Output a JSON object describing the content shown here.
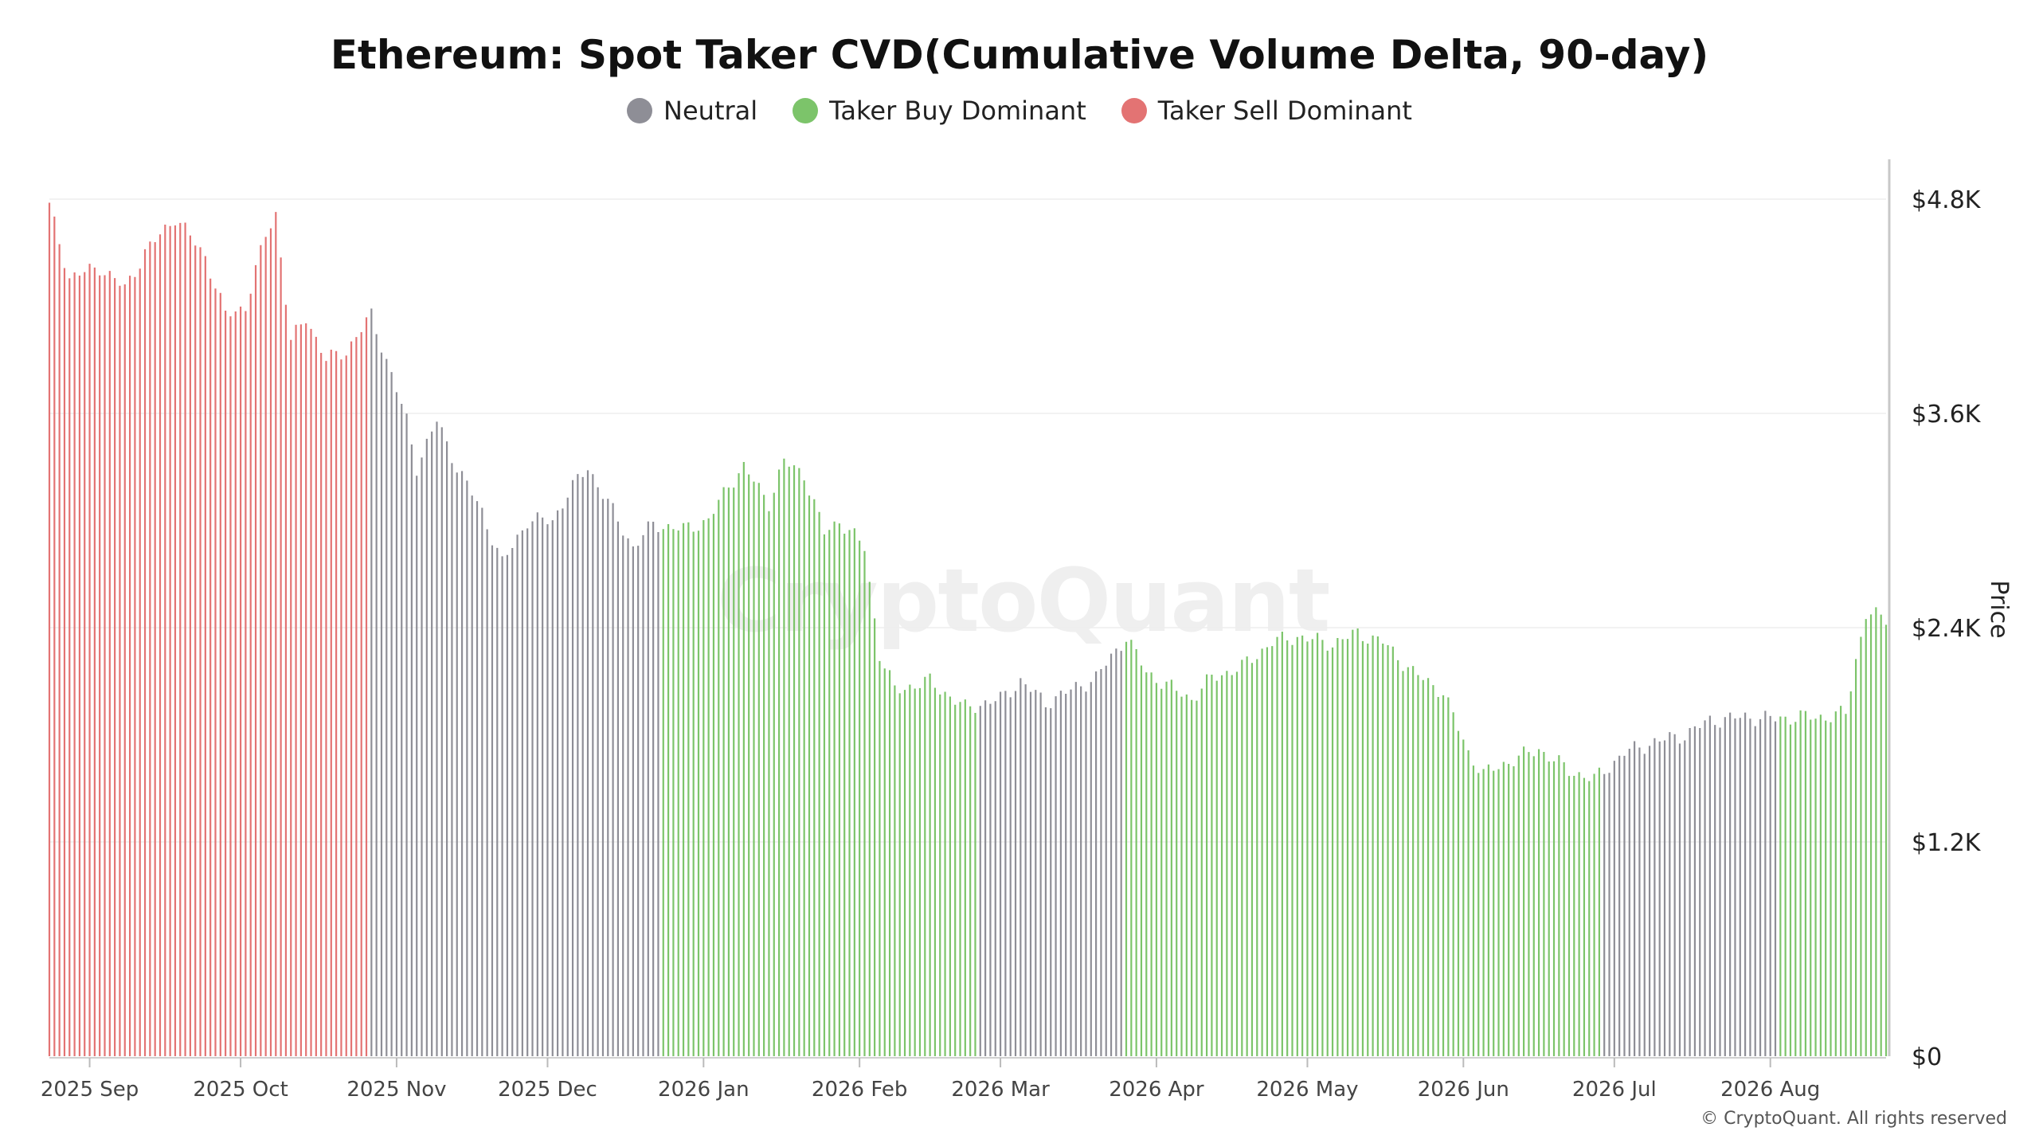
{
  "chart_data": {
    "type": "bar",
    "title": "Ethereum: Spot Taker CVD(Cumulative Volume Delta, 90-day)",
    "xlabel": "",
    "ylabel": "Price",
    "ylim": [
      0,
      4800
    ],
    "y_axis_side": "right",
    "y_ticks": [
      {
        "value": 0,
        "label": "$0"
      },
      {
        "value": 1200,
        "label": "$1.2K"
      },
      {
        "value": 2400,
        "label": "$2.4K"
      },
      {
        "value": 3600,
        "label": "$3.6K"
      },
      {
        "value": 4800,
        "label": "$4.8K"
      }
    ],
    "x_ticks": [
      {
        "date": "2025-09-01",
        "label": "2025 Sep"
      },
      {
        "date": "2025-10-01",
        "label": "2025 Oct"
      },
      {
        "date": "2025-11-01",
        "label": "2025 Nov"
      },
      {
        "date": "2025-12-01",
        "label": "2025 Dec"
      },
      {
        "date": "2026-01-01",
        "label": "2026 Jan"
      },
      {
        "date": "2026-02-01",
        "label": "2026 Feb"
      },
      {
        "date": "2026-03-01",
        "label": "2026 Mar"
      },
      {
        "date": "2026-04-01",
        "label": "2026 Apr"
      },
      {
        "date": "2026-05-01",
        "label": "2026 May"
      },
      {
        "date": "2026-06-01",
        "label": "2026 Jun"
      },
      {
        "date": "2026-07-01",
        "label": "2026 Jul"
      },
      {
        "date": "2026-08-01",
        "label": "2026 Aug"
      }
    ],
    "x_start": "2025-08-24",
    "x_end": "2026-08-24",
    "legend": [
      {
        "name": "Neutral",
        "color": "#8e8e96"
      },
      {
        "name": "Taker Buy Dominant",
        "color": "#7cc46a"
      },
      {
        "name": "Taker Sell Dominant",
        "color": "#e37373"
      }
    ],
    "legend_position": "top-center",
    "grid": true,
    "regimes": [
      {
        "start": "2025-08-24",
        "end": "2025-10-27",
        "state": "Taker Sell Dominant"
      },
      {
        "start": "2025-10-27",
        "end": "2025-12-24",
        "state": "Neutral"
      },
      {
        "start": "2025-12-24",
        "end": "2026-02-25",
        "state": "Taker Buy Dominant"
      },
      {
        "start": "2026-02-25",
        "end": "2026-03-26",
        "state": "Neutral"
      },
      {
        "start": "2026-03-26",
        "end": "2026-06-29",
        "state": "Taker Buy Dominant"
      },
      {
        "start": "2026-06-29",
        "end": "2026-08-03",
        "state": "Neutral"
      },
      {
        "start": "2026-08-03",
        "end": "2026-08-24",
        "state": "Taker Buy Dominant"
      }
    ],
    "price_keypoints": [
      [
        "2025-08-24",
        4760
      ],
      [
        "2025-08-28",
        4360
      ],
      [
        "2025-09-03",
        4420
      ],
      [
        "2025-09-08",
        4300
      ],
      [
        "2025-09-12",
        4500
      ],
      [
        "2025-09-18",
        4700
      ],
      [
        "2025-09-24",
        4480
      ],
      [
        "2025-09-28",
        4150
      ],
      [
        "2025-10-02",
        4200
      ],
      [
        "2025-10-06",
        4600
      ],
      [
        "2025-10-08",
        4720
      ],
      [
        "2025-10-11",
        4000
      ],
      [
        "2025-10-14",
        4140
      ],
      [
        "2025-10-18",
        3900
      ],
      [
        "2025-10-22",
        3950
      ],
      [
        "2025-10-27",
        4150
      ],
      [
        "2025-10-30",
        3900
      ],
      [
        "2025-11-03",
        3560
      ],
      [
        "2025-11-05",
        3300
      ],
      [
        "2025-11-09",
        3560
      ],
      [
        "2025-11-13",
        3300
      ],
      [
        "2025-11-18",
        3050
      ],
      [
        "2025-11-22",
        2760
      ],
      [
        "2025-11-27",
        3000
      ],
      [
        "2025-12-02",
        3000
      ],
      [
        "2025-12-05",
        3150
      ],
      [
        "2025-12-09",
        3300
      ],
      [
        "2025-12-14",
        3050
      ],
      [
        "2025-12-18",
        2850
      ],
      [
        "2025-12-22",
        2980
      ],
      [
        "2025-12-28",
        2950
      ],
      [
        "2026-01-02",
        3000
      ],
      [
        "2026-01-06",
        3200
      ],
      [
        "2026-01-09",
        3300
      ],
      [
        "2026-01-14",
        3100
      ],
      [
        "2026-01-17",
        3330
      ],
      [
        "2026-01-21",
        3260
      ],
      [
        "2026-01-25",
        2930
      ],
      [
        "2026-01-28",
        3000
      ],
      [
        "2026-02-02",
        2850
      ],
      [
        "2026-02-05",
        2250
      ],
      [
        "2026-02-08",
        2050
      ],
      [
        "2026-02-15",
        2100
      ],
      [
        "2026-02-22",
        1950
      ],
      [
        "2026-03-01",
        2000
      ],
      [
        "2026-03-05",
        2100
      ],
      [
        "2026-03-10",
        1980
      ],
      [
        "2026-03-15",
        2050
      ],
      [
        "2026-03-20",
        2120
      ],
      [
        "2026-03-26",
        2350
      ],
      [
        "2026-03-30",
        2150
      ],
      [
        "2026-04-03",
        2080
      ],
      [
        "2026-04-08",
        2000
      ],
      [
        "2026-04-12",
        2120
      ],
      [
        "2026-04-18",
        2180
      ],
      [
        "2026-04-24",
        2320
      ],
      [
        "2026-04-29",
        2350
      ],
      [
        "2026-05-06",
        2310
      ],
      [
        "2026-05-11",
        2370
      ],
      [
        "2026-05-16",
        2320
      ],
      [
        "2026-05-22",
        2150
      ],
      [
        "2026-05-28",
        2040
      ],
      [
        "2026-06-02",
        1700
      ],
      [
        "2026-06-05",
        1580
      ],
      [
        "2026-06-10",
        1650
      ],
      [
        "2026-06-16",
        1720
      ],
      [
        "2026-06-22",
        1600
      ],
      [
        "2026-06-27",
        1550
      ],
      [
        "2026-07-03",
        1700
      ],
      [
        "2026-07-09",
        1760
      ],
      [
        "2026-07-15",
        1800
      ],
      [
        "2026-07-20",
        1880
      ],
      [
        "2026-07-27",
        1900
      ],
      [
        "2026-08-02",
        1890
      ],
      [
        "2026-08-07",
        1900
      ],
      [
        "2026-08-12",
        1900
      ],
      [
        "2026-08-16",
        1920
      ],
      [
        "2026-08-18",
        2220
      ],
      [
        "2026-08-20",
        2480
      ],
      [
        "2026-08-24",
        2450
      ]
    ]
  },
  "watermark": "CryptoQuant",
  "copyright": "© CryptoQuant. All rights reserved"
}
